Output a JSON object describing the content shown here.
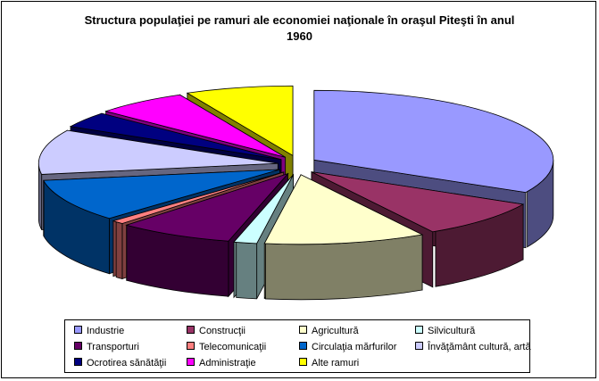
{
  "chart_data": {
    "type": "pie",
    "style": "3d-exploded",
    "title": "Structura populaţiei pe ramuri ale economiei naţionale în oraşul Piteşti în anul 1960",
    "title_lines": [
      "Structura populaţiei pe ramuri ale economiei naţionale în oraşul Piteşti în anul",
      "1960"
    ],
    "legend_position": "bottom",
    "slices": [
      {
        "label": "Industrie",
        "value": 31.5,
        "color": "#9999ff",
        "side": "#4d4d80"
      },
      {
        "label": "Construcţii",
        "value": 8.5,
        "color": "#993366",
        "side": "#4d1a33"
      },
      {
        "label": "Agricultură",
        "value": 10.5,
        "color": "#ffffcc",
        "side": "#808066"
      },
      {
        "label": "Silvicultură",
        "value": 1.5,
        "color": "#ccffff",
        "side": "#668080"
      },
      {
        "label": "Transporturi",
        "value": 7.5,
        "color": "#660066",
        "side": "#330033"
      },
      {
        "label": "Telecomunicaţii",
        "value": 0.8,
        "color": "#ff8080",
        "side": "#804040"
      },
      {
        "label": "Circulaţia mărfurilor",
        "value": 9.5,
        "color": "#0066cc",
        "side": "#003366"
      },
      {
        "label": "Învăţământ cultură, artă",
        "value": 10.0,
        "color": "#ccccff",
        "side": "#666680"
      },
      {
        "label": "Ocrotirea sănătăţii",
        "value": 3.5,
        "color": "#000080",
        "side": "#000040"
      },
      {
        "label": "Administraţie",
        "value": 6.0,
        "color": "#ff00ff",
        "side": "#800080"
      },
      {
        "label": "Alte ramuri",
        "value": 7.0,
        "color": "#ffff00",
        "side": "#808000"
      }
    ]
  }
}
